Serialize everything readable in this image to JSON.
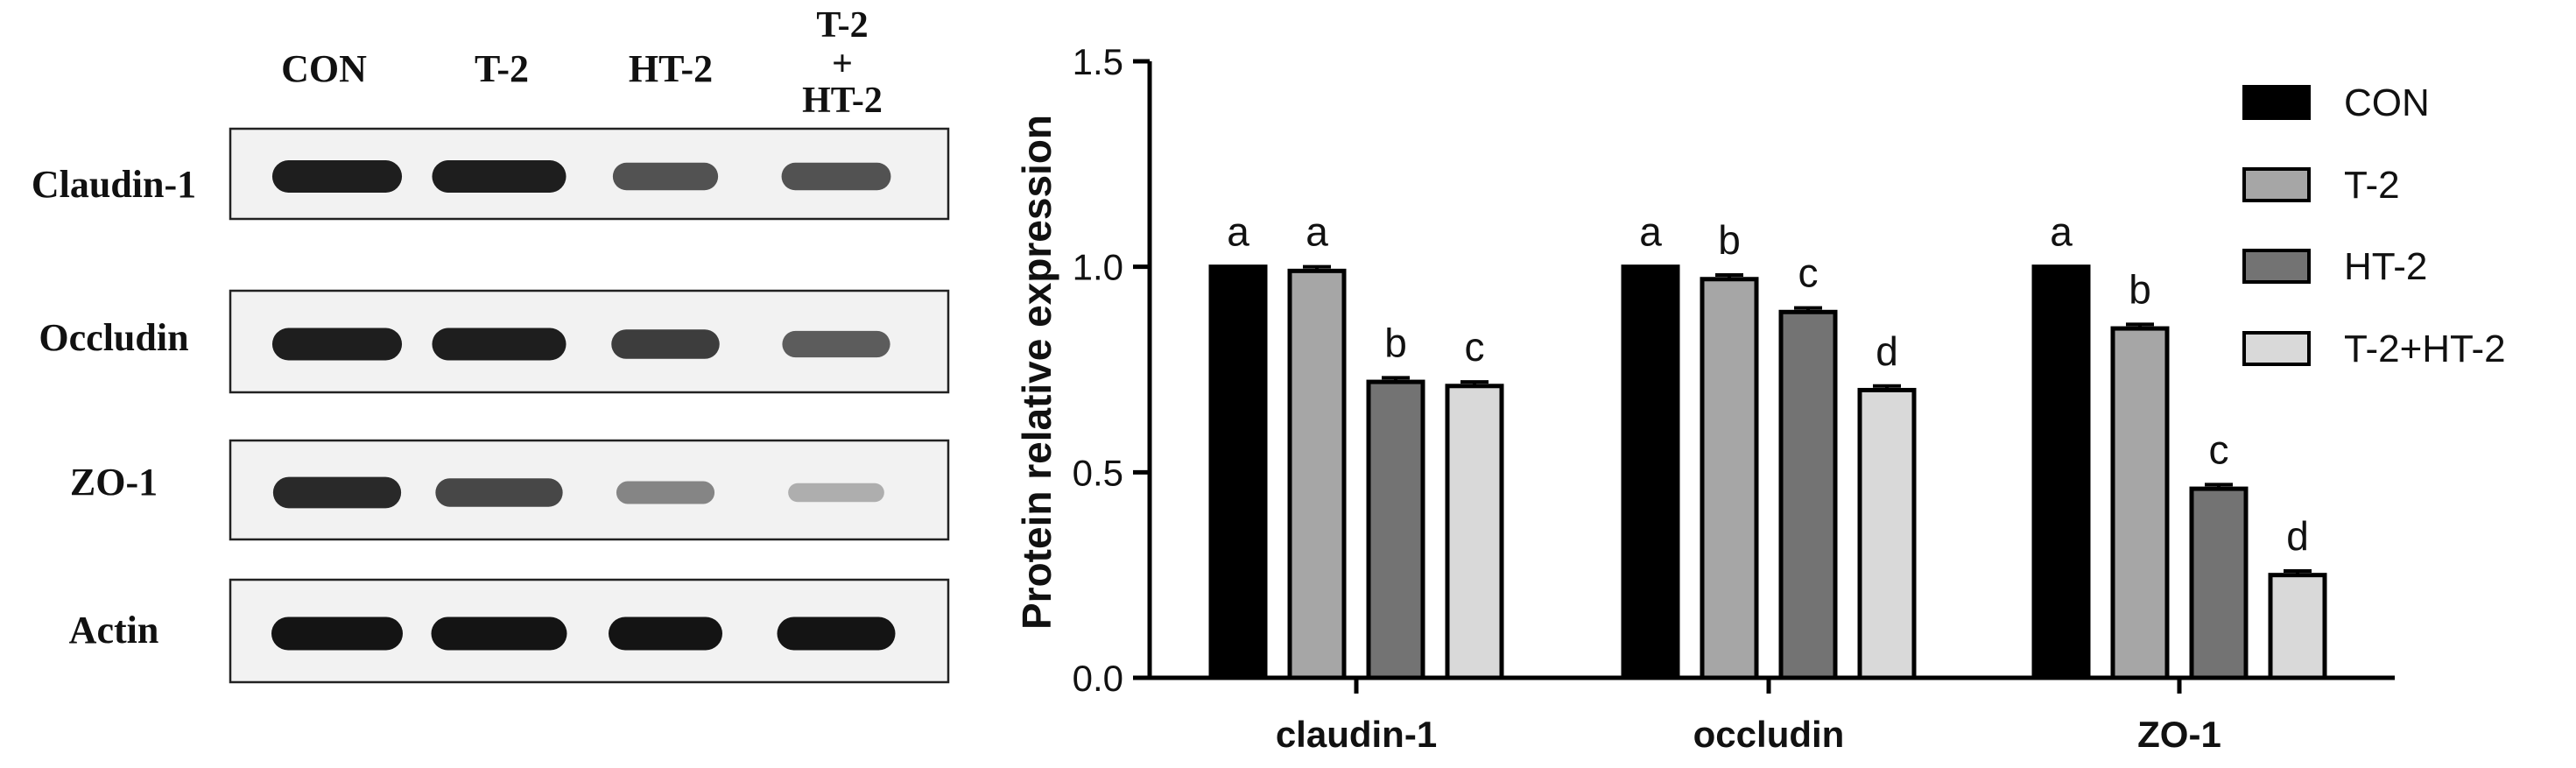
{
  "blot": {
    "lane_labels": [
      "CON",
      "T-2",
      "HT-2"
    ],
    "combo_label": {
      "line1": "T-2",
      "line2": "+",
      "line3": "HT-2"
    },
    "bands": [
      {
        "protein": "Claudin-1",
        "intensity": [
          0.95,
          0.95,
          0.7,
          0.7
        ]
      },
      {
        "protein": "Occludin",
        "intensity": [
          0.95,
          0.95,
          0.8,
          0.65
        ]
      },
      {
        "protein": "ZO-1",
        "intensity": [
          0.9,
          0.75,
          0.45,
          0.25
        ]
      },
      {
        "protein": "Actin",
        "intensity": [
          1.0,
          1.0,
          1.0,
          1.0
        ]
      }
    ]
  },
  "chart_data": {
    "type": "bar",
    "ylabel": "Protein relative expression",
    "ylim": [
      0,
      1.5
    ],
    "yticks": [
      "0.0",
      "0.5",
      "1.0",
      "1.5"
    ],
    "categories": [
      "claudin-1",
      "occludin",
      "ZO-1"
    ],
    "series": [
      {
        "name": "CON",
        "color": "#000000",
        "values": [
          1.0,
          1.0,
          1.0
        ],
        "errors": [
          0,
          0,
          0
        ],
        "letters": [
          "a",
          "a",
          "a"
        ]
      },
      {
        "name": "T-2",
        "color": "#a6a6a6",
        "values": [
          0.99,
          0.97,
          0.85
        ],
        "errors": [
          0.01,
          0.01,
          0.01
        ],
        "letters": [
          "a",
          "b",
          "b"
        ]
      },
      {
        "name": "HT-2",
        "color": "#737373",
        "values": [
          0.72,
          0.89,
          0.46
        ],
        "errors": [
          0.01,
          0.01,
          0.01
        ],
        "letters": [
          "b",
          "c",
          "c"
        ]
      },
      {
        "name": "T-2+HT-2",
        "color": "#d9d9d9",
        "values": [
          0.71,
          0.7,
          0.25
        ],
        "errors": [
          0.01,
          0.01,
          0.01
        ],
        "letters": [
          "c",
          "d",
          "d"
        ]
      }
    ],
    "legend_position": "top-right",
    "grid": false
  }
}
